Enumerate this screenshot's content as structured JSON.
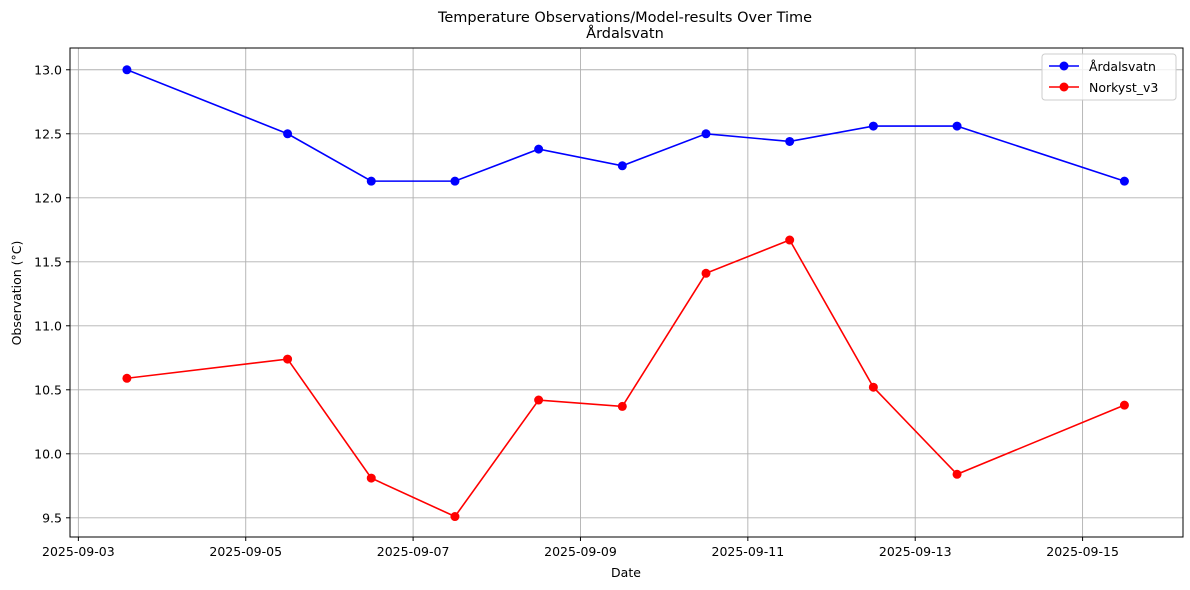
{
  "chart_data": {
    "type": "line",
    "title": "Temperature Observations/Model-results Over Time",
    "subtitle": "Årdalsvatn",
    "xlabel": "Date",
    "ylabel": "Observation (°C)",
    "x": [
      "2025-09-03 14:00",
      "2025-09-05 10:00",
      "2025-09-06 12:00",
      "2025-09-07 12:00",
      "2025-09-08 12:00",
      "2025-09-09 10:00",
      "2025-09-10 10:00",
      "2025-09-11 10:00",
      "2025-09-12 12:00",
      "2025-09-13 12:00",
      "2025-09-15 12:00"
    ],
    "x_numeric_days": [
      3.58,
      5.5,
      6.5,
      7.5,
      8.5,
      9.5,
      10.5,
      11.5,
      12.5,
      13.5,
      15.5
    ],
    "xlim": [
      2.9,
      16.2
    ],
    "xticks": [
      {
        "value": 3,
        "label": "2025-09-03"
      },
      {
        "value": 5,
        "label": "2025-09-05"
      },
      {
        "value": 7,
        "label": "2025-09-07"
      },
      {
        "value": 9,
        "label": "2025-09-09"
      },
      {
        "value": 11,
        "label": "2025-09-11"
      },
      {
        "value": 13,
        "label": "2025-09-13"
      },
      {
        "value": 15,
        "label": "2025-09-15"
      }
    ],
    "ylim": [
      9.35,
      13.17
    ],
    "yticks": [
      {
        "value": 9.5,
        "label": "9.5"
      },
      {
        "value": 10.0,
        "label": "10.0"
      },
      {
        "value": 10.5,
        "label": "10.5"
      },
      {
        "value": 11.0,
        "label": "11.0"
      },
      {
        "value": 11.5,
        "label": "11.5"
      },
      {
        "value": 12.0,
        "label": "12.0"
      },
      {
        "value": 12.5,
        "label": "12.5"
      },
      {
        "value": 13.0,
        "label": "13.0"
      }
    ],
    "grid": true,
    "legend_position": "top-right",
    "series": [
      {
        "name": "Årdalsvatn",
        "color": "#0000ff",
        "values": [
          13.0,
          12.5,
          12.13,
          12.13,
          12.38,
          12.25,
          12.5,
          12.44,
          12.56,
          12.56,
          12.13
        ]
      },
      {
        "name": "Norkyst_v3",
        "color": "#ff0000",
        "values": [
          10.59,
          10.74,
          9.81,
          9.51,
          10.42,
          10.37,
          11.41,
          11.67,
          10.52,
          9.84,
          10.38
        ]
      }
    ]
  }
}
